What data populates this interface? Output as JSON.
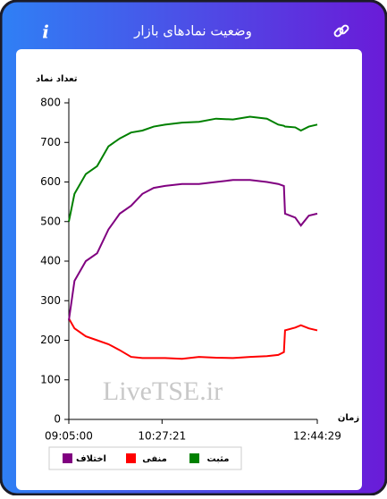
{
  "header": {
    "title": "وضعیت نمادهای بازار",
    "info_icon": "i"
  },
  "chart_data": {
    "type": "line",
    "y_label": "تعداد نماد",
    "x_label": "زمان",
    "watermark": "LiveTSE.ir",
    "x": [
      "09:05:00",
      "09:10:00",
      "09:20:00",
      "09:30:00",
      "09:40:00",
      "09:50:00",
      "10:00:00",
      "10:10:00",
      "10:20:00",
      "10:30:00",
      "10:45:00",
      "11:00:00",
      "11:15:00",
      "11:30:00",
      "11:45:00",
      "12:00:00",
      "12:10:00",
      "12:15:00",
      "12:16:00",
      "12:25:00",
      "12:30:00",
      "12:37:00",
      "12:44:29"
    ],
    "series": [
      {
        "name": "مثبت",
        "color": "#008000",
        "values": [
          500,
          570,
          620,
          640,
          690,
          710,
          725,
          730,
          740,
          745,
          750,
          752,
          760,
          758,
          765,
          760,
          745,
          742,
          740,
          738,
          730,
          740,
          745
        ]
      },
      {
        "name": "منفی",
        "color": "#ff0000",
        "values": [
          255,
          230,
          210,
          200,
          190,
          175,
          158,
          155,
          155,
          155,
          153,
          158,
          156,
          155,
          158,
          160,
          163,
          170,
          225,
          232,
          238,
          230,
          225
        ]
      },
      {
        "name": "اختلاف",
        "color": "#800080",
        "values": [
          250,
          350,
          400,
          420,
          480,
          520,
          540,
          570,
          585,
          590,
          595,
          595,
          600,
          605,
          605,
          600,
          595,
          590,
          520,
          510,
          490,
          515,
          520
        ]
      }
    ],
    "xlim": [
      "09:05:00",
      "12:44:29"
    ],
    "xticks": [
      "09:05:00",
      "10:27:21",
      "12:44:29"
    ],
    "ylim": [
      0,
      800
    ],
    "yticks": [
      0,
      100,
      200,
      300,
      400,
      500,
      600,
      700,
      800
    ],
    "grid": false
  }
}
